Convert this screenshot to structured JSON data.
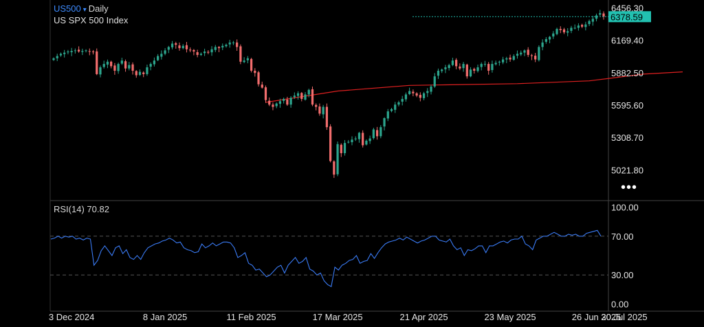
{
  "header": {
    "symbol": "US500",
    "caret": "▾",
    "timeframe": "Daily",
    "instrument_name": "US SPX 500 Index"
  },
  "rsi": {
    "label": "RSI(14)",
    "value": "70.82"
  },
  "current_price_label": "6378.59",
  "more_menu": "•••",
  "colors": {
    "up": "#2ca58d",
    "down": "#f26d6d",
    "ma": "#e02020",
    "rsi": "#3a7bf5",
    "price_box": "#22c0b0",
    "axis": "#444444",
    "bg": "#000000"
  },
  "chart_data": [
    {
      "type": "candlestick",
      "title": "US500 Daily",
      "subtitle": "US SPX 500 Index",
      "ylim": [
        4850,
        6470
      ],
      "y_ticks": [
        "6456.30",
        "6169.40",
        "5882.50",
        "5595.60",
        "5308.70",
        "5021.80"
      ],
      "y_tick_values": [
        6456.3,
        6169.4,
        5882.5,
        5595.6,
        5308.7,
        5021.8
      ],
      "x_ticks": [
        "3 Dec 2024",
        "8 Jan 2025",
        "11 Feb 2025",
        "17 Mar 2025",
        "21 Apr 2025",
        "23 May 2025",
        "26 Jun 2025",
        "30 Jul 2025"
      ],
      "x_tick_index": [
        5,
        31,
        55,
        79,
        103,
        127,
        151,
        175
      ],
      "last_price": 6378.59,
      "close_series": [
        6010,
        6030,
        6050,
        6060,
        6070,
        6075,
        6080,
        6070,
        6075,
        6080,
        6070,
        6065,
        5870,
        5930,
        5960,
        5980,
        5940,
        5900,
        5960,
        5990,
        5920,
        5950,
        5900,
        5860,
        5890,
        5870,
        5930,
        5960,
        5990,
        6030,
        6050,
        6080,
        6110,
        6140,
        6130,
        6100,
        6120,
        6090,
        6080,
        6070,
        6040,
        6050,
        6070,
        6060,
        6090,
        6110,
        6100,
        6120,
        6130,
        6150,
        6150,
        6110,
        5980,
        5990,
        6010,
        5900,
        5880,
        5780,
        5750,
        5640,
        5600,
        5580,
        5610,
        5630,
        5650,
        5600,
        5660,
        5680,
        5700,
        5650,
        5690,
        5730,
        5600,
        5580,
        5520,
        5580,
        5400,
        5100,
        4980,
        5250,
        5170,
        5260,
        5270,
        5290,
        5300,
        5350,
        5240,
        5280,
        5300,
        5380,
        5320,
        5400,
        5480,
        5540,
        5560,
        5600,
        5620,
        5650,
        5690,
        5720,
        5700,
        5680,
        5660,
        5700,
        5720,
        5760,
        5850,
        5900,
        5910,
        5930,
        5950,
        5990,
        5940,
        5920,
        5960,
        5850,
        5910,
        5900,
        5930,
        5960,
        5960,
        5900,
        5960,
        5970,
        5980,
        6000,
        6010,
        6000,
        6030,
        6050,
        6060,
        6080,
        6040,
        6030,
        6000,
        6110,
        6150,
        6180,
        6200,
        6230,
        6270,
        6260,
        6240,
        6250,
        6280,
        6280,
        6300,
        6290,
        6310,
        6340,
        6360,
        6390,
        6410,
        6380
      ],
      "ma_series": [
        [
          60,
          5620
        ],
        [
          80,
          5720
        ],
        [
          100,
          5770
        ],
        [
          110,
          5775
        ],
        [
          130,
          5785
        ],
        [
          150,
          5810
        ],
        [
          165,
          5870
        ],
        [
          176,
          5890
        ]
      ]
    },
    {
      "type": "line",
      "title": "RSI(14) 70.82",
      "ylim": [
        0,
        100
      ],
      "y_ticks": [
        "100.00",
        "70.00",
        "30.00",
        "0.00"
      ],
      "y_tick_values": [
        100,
        70,
        30,
        0
      ],
      "series": [
        {
          "name": "RSI(14)",
          "values": [
            67,
            68,
            70,
            68,
            70,
            69,
            70,
            67,
            68,
            66,
            68,
            67,
            40,
            45,
            55,
            60,
            55,
            50,
            58,
            60,
            52,
            56,
            48,
            46,
            50,
            46,
            53,
            58,
            60,
            62,
            63,
            65,
            66,
            68,
            66,
            63,
            64,
            58,
            56,
            55,
            53,
            54,
            62,
            58,
            60,
            63,
            60,
            62,
            64,
            64,
            63,
            58,
            48,
            50,
            53,
            42,
            40,
            35,
            36,
            32,
            28,
            30,
            34,
            38,
            40,
            32,
            40,
            44,
            48,
            42,
            44,
            48,
            36,
            34,
            30,
            32,
            24,
            20,
            18,
            38,
            35,
            40,
            42,
            45,
            46,
            50,
            42,
            44,
            45,
            52,
            47,
            53,
            58,
            62,
            64,
            65,
            66,
            68,
            66,
            69,
            67,
            65,
            63,
            65,
            66,
            68,
            70,
            70,
            66,
            65,
            64,
            67,
            60,
            56,
            58,
            50,
            56,
            55,
            57,
            60,
            60,
            53,
            60,
            60,
            62,
            64,
            65,
            63,
            66,
            67,
            67,
            70,
            62,
            60,
            56,
            66,
            68,
            70,
            70,
            72,
            74,
            72,
            70,
            70,
            72,
            71,
            72,
            70,
            70,
            73,
            74,
            75,
            76,
            70
          ]
        }
      ]
    }
  ]
}
